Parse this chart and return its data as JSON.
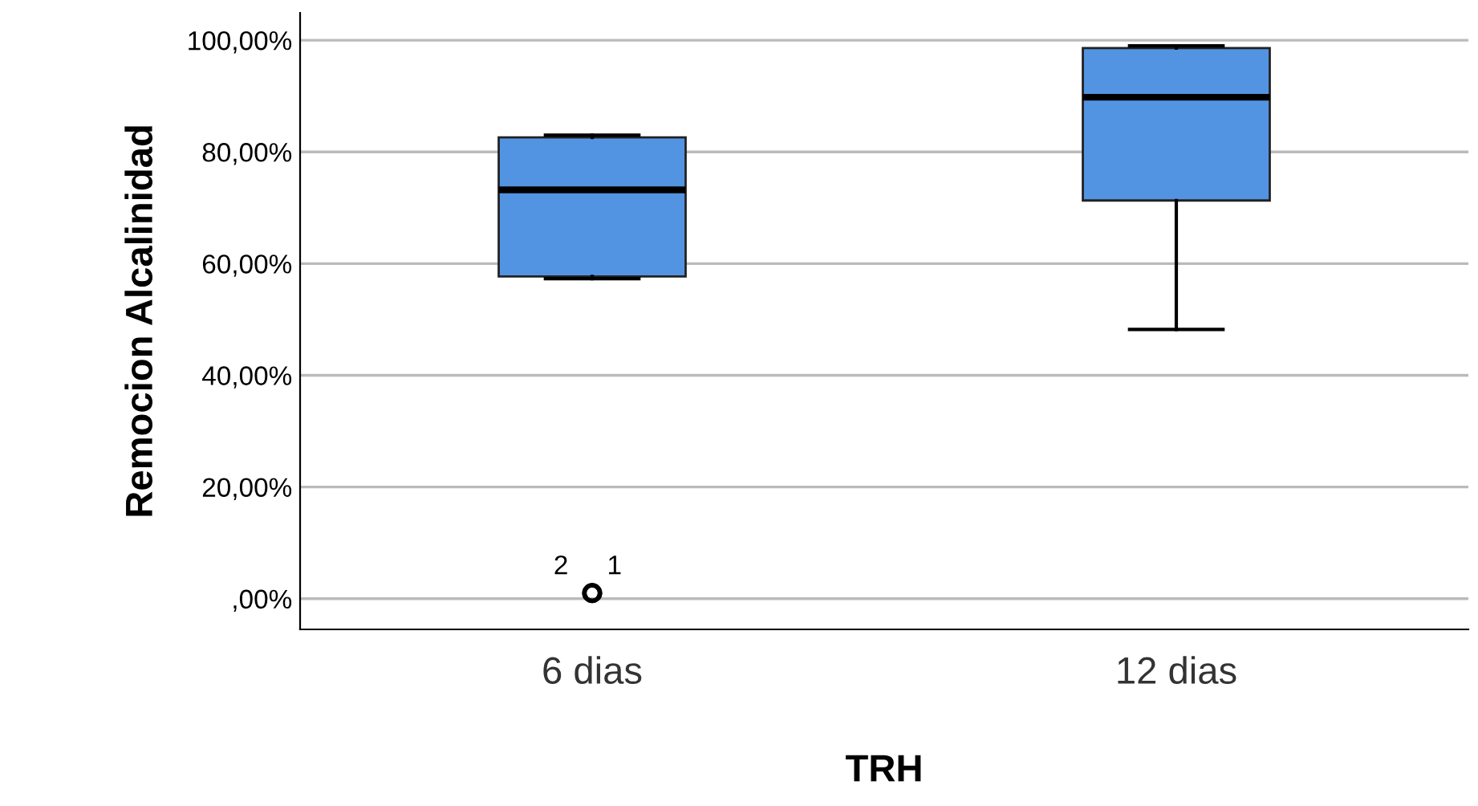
{
  "chart_data": {
    "type": "box",
    "xlabel": "TRH",
    "ylabel": "Remocion Alcalinidad",
    "categories": [
      "6 dias",
      "12 dias"
    ],
    "boxes": [
      {
        "low": 57.3,
        "q1": 57.7,
        "median": 73.2,
        "q3": 82.6,
        "high": 83.0,
        "outliers": [
          1.0,
          1.0
        ]
      },
      {
        "low": 48.2,
        "q1": 71.3,
        "median": 89.8,
        "q3": 98.6,
        "high": 99.0
      }
    ],
    "color": "#5294e2",
    "annotations": [
      "2",
      "1"
    ],
    "ylim": [
      -5.5,
      104.9
    ],
    "yticks": [
      {
        "value": 0,
        "label": ",00%"
      },
      {
        "value": 20,
        "label": "20,00%"
      },
      {
        "value": 40,
        "label": "40,00%"
      },
      {
        "value": 60,
        "label": "60,00%"
      },
      {
        "value": 80,
        "label": "80,00%"
      },
      {
        "value": 100,
        "label": "100,00%"
      }
    ],
    "grid": "y"
  }
}
